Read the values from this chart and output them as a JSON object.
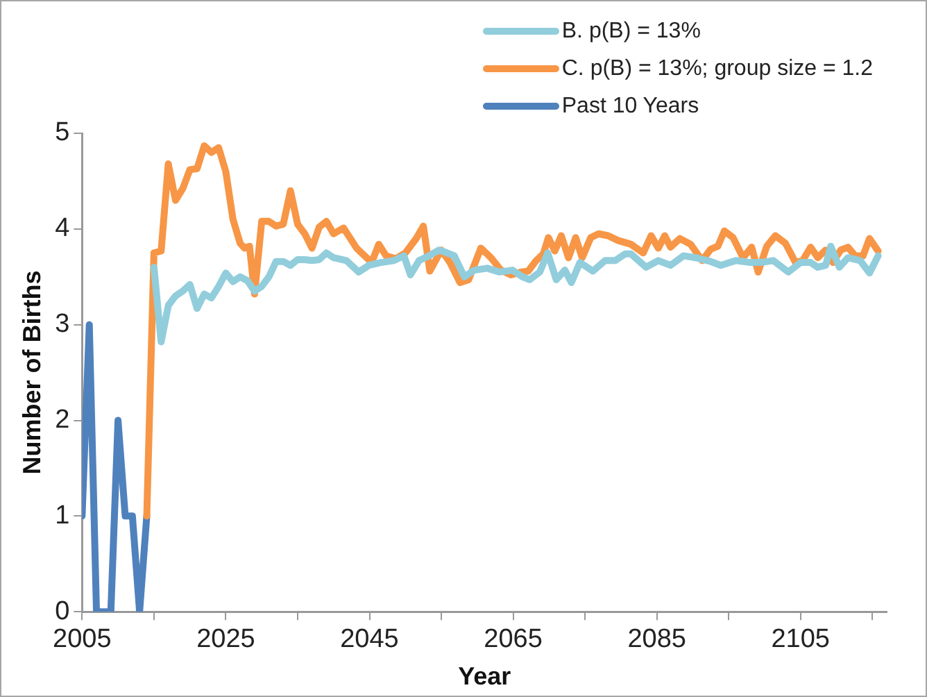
{
  "chart_data": {
    "type": "line",
    "xlabel": "Year",
    "ylabel": "Number of Births",
    "xlim": [
      2005,
      2117
    ],
    "xticks": [
      2005,
      {
        "value": 2015,
        "label": null
      },
      2025,
      {
        "value": 2035,
        "label": null
      },
      2045,
      {
        "value": 2055,
        "label": null
      },
      2065,
      {
        "value": 2075,
        "label": null
      },
      2085,
      {
        "value": 2095,
        "label": null
      },
      2105,
      {
        "value": 2115,
        "label": null
      }
    ],
    "ylim": [
      0,
      5
    ],
    "yticks": [
      0,
      1,
      2,
      3,
      4,
      5
    ],
    "grid": false,
    "legend": "top right",
    "marker": "none",
    "line_style": "solid",
    "series": [
      {
        "name": "B. p(B) = 13%",
        "color": "#92cddc",
        "x": [
          2015,
          2016,
          2017,
          2018,
          2019,
          2020,
          2021,
          2022,
          2023,
          2024,
          2025,
          2026,
          2027,
          2028,
          2029,
          2030,
          2031,
          2032,
          2033,
          2034,
          2035,
          2036,
          2037,
          2038,
          2039,
          2040,
          2041.8,
          2043.5,
          2044.9,
          2046.6,
          2048.4,
          2049.8,
          2050.7,
          2051.9,
          2053.3,
          2054.7,
          2055.8,
          2056.8,
          2058.2,
          2059.6,
          2061.4,
          2063.1,
          2064.9,
          2066.3,
          2067.3,
          2068.7,
          2069.8,
          2071,
          2072.2,
          2073.1,
          2074.3,
          2076.1,
          2077.8,
          2079.2,
          2080.6,
          2081.4,
          2083.5,
          2085.2,
          2086.9,
          2088.7,
          2090.4,
          2092.5,
          2093.9,
          2096,
          2098,
          2099.4,
          2101.2,
          2103.3,
          2105,
          2106.4,
          2107.4,
          2108.5,
          2109.2,
          2110.4,
          2111.6,
          2113.3,
          2114.6,
          2115.8
        ],
        "values": [
          3.6,
          2.82,
          3.2,
          3.3,
          3.35,
          3.42,
          3.17,
          3.32,
          3.28,
          3.4,
          3.54,
          3.45,
          3.5,
          3.46,
          3.35,
          3.4,
          3.5,
          3.66,
          3.66,
          3.62,
          3.68,
          3.68,
          3.67,
          3.68,
          3.75,
          3.7,
          3.67,
          3.55,
          3.62,
          3.65,
          3.67,
          3.72,
          3.52,
          3.67,
          3.72,
          3.78,
          3.75,
          3.72,
          3.5,
          3.57,
          3.59,
          3.55,
          3.57,
          3.5,
          3.47,
          3.55,
          3.75,
          3.47,
          3.57,
          3.44,
          3.65,
          3.56,
          3.67,
          3.67,
          3.74,
          3.74,
          3.6,
          3.67,
          3.62,
          3.72,
          3.7,
          3.66,
          3.62,
          3.67,
          3.65,
          3.65,
          3.67,
          3.55,
          3.65,
          3.65,
          3.6,
          3.62,
          3.82,
          3.6,
          3.7,
          3.67,
          3.54,
          3.72
        ]
      },
      {
        "name": "C. p(B) = 13%; group size = 1.2",
        "color": "#f79646",
        "x": [
          2014,
          2015,
          2016,
          2017,
          2018,
          2019,
          2020,
          2021,
          2022,
          2023,
          2024,
          2025,
          2026,
          2027,
          2027.6,
          2028.3,
          2029,
          2030,
          2031,
          2032,
          2033,
          2034,
          2035,
          2036,
          2037,
          2038,
          2039,
          2040,
          2041.4,
          2043.2,
          2045.3,
          2046.3,
          2047.3,
          2048.7,
          2050,
          2051.5,
          2052.5,
          2053.4,
          2055,
          2056.2,
          2057.6,
          2058.8,
          2060.5,
          2061.9,
          2063.3,
          2064.7,
          2066.1,
          2067.1,
          2068.2,
          2069.2,
          2069.9,
          2070.8,
          2071.7,
          2072.7,
          2073.7,
          2074.6,
          2075.8,
          2076.9,
          2078.2,
          2079.6,
          2081.4,
          2083.1,
          2084.2,
          2085.2,
          2086.1,
          2086.9,
          2088.2,
          2089.7,
          2091.3,
          2092.5,
          2093.5,
          2094.4,
          2095.6,
          2097,
          2098.2,
          2099.1,
          2100.3,
          2101.5,
          2102.9,
          2104.3,
          2105.3,
          2106.4,
          2107.4,
          2108.5,
          2109.5,
          2110.6,
          2111.6,
          2112.6,
          2113.7,
          2114.6,
          2115.8
        ],
        "values": [
          1,
          3.75,
          3.77,
          4.68,
          4.3,
          4.42,
          4.62,
          4.63,
          4.87,
          4.8,
          4.85,
          4.6,
          4.1,
          3.85,
          3.8,
          3.82,
          3.32,
          4.08,
          4.08,
          4.03,
          4.05,
          4.4,
          4.05,
          3.95,
          3.8,
          4.02,
          4.08,
          3.95,
          4.01,
          3.8,
          3.65,
          3.84,
          3.72,
          3.69,
          3.75,
          3.9,
          4.03,
          3.56,
          3.78,
          3.65,
          3.44,
          3.47,
          3.8,
          3.7,
          3.57,
          3.52,
          3.55,
          3.56,
          3.67,
          3.74,
          3.91,
          3.77,
          3.93,
          3.7,
          3.91,
          3.7,
          3.91,
          3.95,
          3.93,
          3.88,
          3.84,
          3.75,
          3.93,
          3.8,
          3.93,
          3.81,
          3.9,
          3.84,
          3.67,
          3.79,
          3.82,
          3.98,
          3.91,
          3.7,
          3.81,
          3.55,
          3.82,
          3.93,
          3.85,
          3.65,
          3.67,
          3.81,
          3.7,
          3.78,
          3.65,
          3.78,
          3.81,
          3.72,
          3.72,
          3.9,
          3.77
        ]
      },
      {
        "name": "Past 10 Years",
        "color": "#4f81bd",
        "x": [
          2005,
          2006,
          2007,
          2008,
          2009,
          2010,
          2011,
          2012,
          2013,
          2014
        ],
        "values": [
          1,
          3,
          0,
          0,
          0,
          2,
          1,
          1,
          0,
          1
        ]
      }
    ]
  }
}
